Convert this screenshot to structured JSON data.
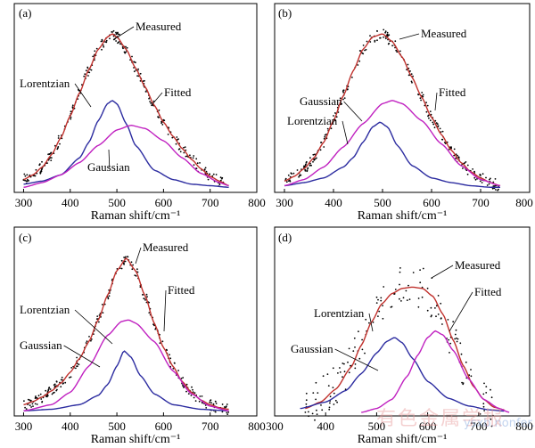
{
  "chart_data": [
    {
      "type": "line",
      "panel_label": "(a)",
      "xlabel": "Raman shift/cm⁻¹",
      "ylabel": "",
      "xlim": [
        280,
        800
      ],
      "xticks": [
        300,
        400,
        500,
        600,
        700,
        800
      ],
      "grid": false,
      "series": [
        {
          "name": "Measured",
          "kind": "points",
          "color": "#000000",
          "x": [
            300,
            320,
            340,
            360,
            380,
            400,
            420,
            440,
            460,
            480,
            490,
            500,
            520,
            540,
            560,
            580,
            600,
            620,
            640,
            660,
            680,
            700,
            720,
            740
          ],
          "y": [
            0.06,
            0.09,
            0.14,
            0.22,
            0.33,
            0.47,
            0.62,
            0.77,
            0.9,
            0.98,
            1.0,
            0.98,
            0.9,
            0.78,
            0.66,
            0.54,
            0.43,
            0.34,
            0.26,
            0.19,
            0.13,
            0.08,
            0.05,
            0.02
          ]
        },
        {
          "name": "Fitted",
          "kind": "line",
          "color": "#c0302c",
          "x": [
            300,
            320,
            340,
            360,
            380,
            400,
            420,
            440,
            460,
            480,
            490,
            500,
            520,
            540,
            560,
            580,
            600,
            620,
            640,
            660,
            680,
            700,
            720,
            740
          ],
          "y": [
            0.06,
            0.09,
            0.14,
            0.22,
            0.33,
            0.47,
            0.62,
            0.77,
            0.9,
            0.98,
            1.0,
            0.98,
            0.9,
            0.78,
            0.66,
            0.54,
            0.43,
            0.34,
            0.26,
            0.19,
            0.13,
            0.08,
            0.05,
            0.02
          ]
        },
        {
          "name": "Lorentzian",
          "kind": "line",
          "color": "#2c2ca0",
          "x": [
            300,
            340,
            380,
            420,
            440,
            460,
            480,
            490,
            500,
            520,
            540,
            580,
            620,
            660,
            700,
            740
          ],
          "y": [
            0.03,
            0.05,
            0.09,
            0.2,
            0.3,
            0.44,
            0.55,
            0.57,
            0.55,
            0.42,
            0.28,
            0.12,
            0.06,
            0.03,
            0.02,
            0.01
          ]
        },
        {
          "name": "Gaussian",
          "kind": "line",
          "color": "#c020c0",
          "x": [
            300,
            340,
            380,
            420,
            460,
            500,
            530,
            560,
            600,
            640,
            680,
            720,
            740
          ],
          "y": [
            0.01,
            0.04,
            0.09,
            0.17,
            0.28,
            0.38,
            0.41,
            0.39,
            0.31,
            0.2,
            0.1,
            0.04,
            0.02
          ]
        }
      ],
      "annotations": [
        "Measured",
        "Lorentzian",
        "Fitted",
        "Gaussian"
      ]
    },
    {
      "type": "line",
      "panel_label": "(b)",
      "xlabel": "Raman shift/cm⁻¹",
      "ylabel": "",
      "xlim": [
        280,
        800
      ],
      "xticks": [
        300,
        400,
        500,
        600,
        700,
        800
      ],
      "grid": false,
      "series": [
        {
          "name": "Measured",
          "kind": "points",
          "color": "#000000",
          "x": [
            300,
            320,
            340,
            360,
            380,
            400,
            420,
            440,
            460,
            480,
            500,
            520,
            540,
            560,
            580,
            600,
            620,
            640,
            660,
            680,
            700,
            720,
            740
          ],
          "y": [
            0.05,
            0.08,
            0.13,
            0.2,
            0.3,
            0.44,
            0.6,
            0.76,
            0.9,
            0.98,
            1.0,
            0.95,
            0.85,
            0.72,
            0.59,
            0.46,
            0.35,
            0.25,
            0.17,
            0.11,
            0.07,
            0.04,
            0.02
          ]
        },
        {
          "name": "Fitted",
          "kind": "line",
          "color": "#c0302c",
          "x": [
            300,
            320,
            340,
            360,
            380,
            400,
            420,
            440,
            460,
            480,
            500,
            520,
            540,
            560,
            580,
            600,
            620,
            640,
            660,
            680,
            700,
            720,
            740
          ],
          "y": [
            0.05,
            0.08,
            0.13,
            0.2,
            0.3,
            0.44,
            0.6,
            0.76,
            0.9,
            0.98,
            1.0,
            0.95,
            0.85,
            0.72,
            0.59,
            0.46,
            0.35,
            0.25,
            0.17,
            0.11,
            0.07,
            0.04,
            0.02
          ]
        },
        {
          "name": "Lorentzian",
          "kind": "line",
          "color": "#2c2ca0",
          "x": [
            300,
            340,
            380,
            420,
            440,
            460,
            480,
            495,
            510,
            530,
            560,
            600,
            640,
            680,
            720,
            740
          ],
          "y": [
            0.02,
            0.04,
            0.07,
            0.14,
            0.2,
            0.3,
            0.4,
            0.43,
            0.4,
            0.28,
            0.15,
            0.07,
            0.04,
            0.02,
            0.01,
            0.01
          ]
        },
        {
          "name": "Gaussian",
          "kind": "line",
          "color": "#c020c0",
          "x": [
            300,
            340,
            380,
            420,
            460,
            500,
            520,
            540,
            580,
            620,
            660,
            700,
            740
          ],
          "y": [
            0.02,
            0.06,
            0.14,
            0.27,
            0.42,
            0.55,
            0.57,
            0.55,
            0.44,
            0.29,
            0.15,
            0.06,
            0.02
          ]
        }
      ],
      "annotations": [
        "Measured",
        "Fitted",
        "Gaussian",
        "Lorentzian"
      ]
    },
    {
      "type": "line",
      "panel_label": "(c)",
      "xlabel": "Raman shift/cm⁻¹",
      "ylabel": "",
      "xlim": [
        280,
        800
      ],
      "xticks": [
        300,
        400,
        500,
        600,
        700,
        800
      ],
      "grid": false,
      "series": [
        {
          "name": "Measured",
          "kind": "points",
          "color": "#000000",
          "x": [
            300,
            320,
            340,
            360,
            380,
            400,
            420,
            440,
            460,
            480,
            500,
            520,
            540,
            560,
            580,
            600,
            620,
            640,
            660,
            680,
            700,
            720,
            740
          ],
          "y": [
            0.05,
            0.07,
            0.1,
            0.14,
            0.19,
            0.26,
            0.35,
            0.46,
            0.6,
            0.76,
            0.92,
            1.0,
            0.92,
            0.76,
            0.58,
            0.42,
            0.3,
            0.2,
            0.13,
            0.08,
            0.05,
            0.03,
            0.02
          ]
        },
        {
          "name": "Fitted",
          "kind": "line",
          "color": "#c0302c",
          "x": [
            300,
            320,
            340,
            360,
            380,
            400,
            420,
            440,
            460,
            480,
            500,
            520,
            540,
            560,
            580,
            600,
            620,
            640,
            660,
            680,
            700,
            720,
            740
          ],
          "y": [
            0.05,
            0.07,
            0.1,
            0.14,
            0.19,
            0.26,
            0.35,
            0.46,
            0.6,
            0.76,
            0.92,
            1.0,
            0.92,
            0.76,
            0.58,
            0.42,
            0.3,
            0.2,
            0.13,
            0.08,
            0.05,
            0.03,
            0.02
          ]
        },
        {
          "name": "Lorentzian",
          "kind": "line",
          "color": "#2c2ca0",
          "x": [
            300,
            360,
            420,
            460,
            480,
            500,
            515,
            530,
            550,
            580,
            620,
            680,
            740
          ],
          "y": [
            0.01,
            0.02,
            0.05,
            0.11,
            0.18,
            0.3,
            0.4,
            0.36,
            0.24,
            0.12,
            0.05,
            0.02,
            0.01
          ]
        },
        {
          "name": "Gaussian",
          "kind": "line",
          "color": "#c020c0",
          "x": [
            300,
            360,
            400,
            440,
            480,
            510,
            525,
            540,
            580,
            620,
            660,
            700,
            740
          ],
          "y": [
            0.01,
            0.05,
            0.13,
            0.3,
            0.5,
            0.59,
            0.6,
            0.58,
            0.46,
            0.27,
            0.12,
            0.04,
            0.01
          ]
        }
      ],
      "annotations": [
        "Measured",
        "Fitted",
        "Lorentzian",
        "Gaussian"
      ]
    },
    {
      "type": "line",
      "panel_label": "(d)",
      "xlabel": "Raman shift/cm⁻¹",
      "ylabel": "",
      "xlim": [
        300,
        800
      ],
      "xticks": [
        300,
        400,
        500,
        600,
        700,
        800
      ],
      "grid": false,
      "series": [
        {
          "name": "Measured",
          "kind": "points",
          "color": "#000000",
          "x": [
            360,
            390,
            420,
            450,
            470,
            490,
            510,
            530,
            550,
            570,
            590,
            610,
            630,
            650,
            670,
            690,
            710,
            730
          ],
          "y": [
            0.06,
            0.12,
            0.22,
            0.38,
            0.55,
            0.72,
            0.86,
            0.92,
            0.98,
            1.0,
            0.96,
            0.88,
            0.74,
            0.55,
            0.36,
            0.2,
            0.1,
            0.04
          ]
        },
        {
          "name": "Fitted",
          "kind": "line",
          "color": "#c0302c",
          "x": [
            360,
            390,
            420,
            450,
            470,
            490,
            510,
            530,
            550,
            570,
            590,
            610,
            630,
            650,
            670,
            690,
            710,
            730,
            750
          ],
          "y": [
            0.03,
            0.08,
            0.18,
            0.35,
            0.52,
            0.7,
            0.84,
            0.92,
            0.96,
            0.97,
            0.96,
            0.9,
            0.76,
            0.56,
            0.36,
            0.2,
            0.1,
            0.04,
            0.02
          ]
        },
        {
          "name": "Lorentzian",
          "kind": "line",
          "color": "#2c2ca0",
          "x": [
            350,
            400,
            440,
            470,
            500,
            520,
            535,
            550,
            570,
            600,
            640,
            680,
            720,
            750
          ],
          "y": [
            0.03,
            0.08,
            0.17,
            0.3,
            0.46,
            0.55,
            0.58,
            0.54,
            0.42,
            0.24,
            0.11,
            0.05,
            0.02,
            0.01
          ]
        },
        {
          "name": "Gaussian",
          "kind": "line",
          "color": "#c020c0",
          "x": [
            470,
            500,
            530,
            560,
            580,
            600,
            615,
            630,
            650,
            680,
            710,
            740,
            760
          ],
          "y": [
            0.0,
            0.03,
            0.1,
            0.28,
            0.44,
            0.58,
            0.63,
            0.6,
            0.48,
            0.26,
            0.1,
            0.03,
            0.0
          ]
        }
      ],
      "annotations": [
        "Measured",
        "Fitted",
        "Lorentzian",
        "Gaussian"
      ]
    }
  ],
  "watermark": {
    "text": "有色金属学报",
    "sub": "ysxb.nonfer.cn"
  }
}
